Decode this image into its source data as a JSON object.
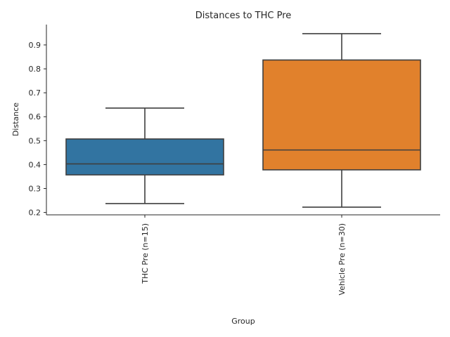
{
  "chart_data": {
    "type": "boxplot",
    "title": "Distances to THC Pre",
    "xlabel": "Group",
    "ylabel": "Distance",
    "ylim": [
      0.19,
      0.985
    ],
    "yticks": [
      0.2,
      0.3,
      0.4,
      0.5,
      0.6,
      0.7,
      0.8,
      0.9
    ],
    "grid": false,
    "categories": [
      "THC Pre (n=15)",
      "Vehicle Pre (n=30)"
    ],
    "boxes": [
      {
        "category": "THC Pre (n=15)",
        "whisker_low": 0.237,
        "q1": 0.357,
        "median": 0.403,
        "q3": 0.507,
        "whisker_high": 0.636,
        "color": "#3274a1"
      },
      {
        "category": "Vehicle Pre (n=30)",
        "whisker_low": 0.222,
        "q1": 0.378,
        "median": 0.461,
        "q3": 0.837,
        "whisker_high": 0.947,
        "color": "#e1812c"
      }
    ]
  }
}
